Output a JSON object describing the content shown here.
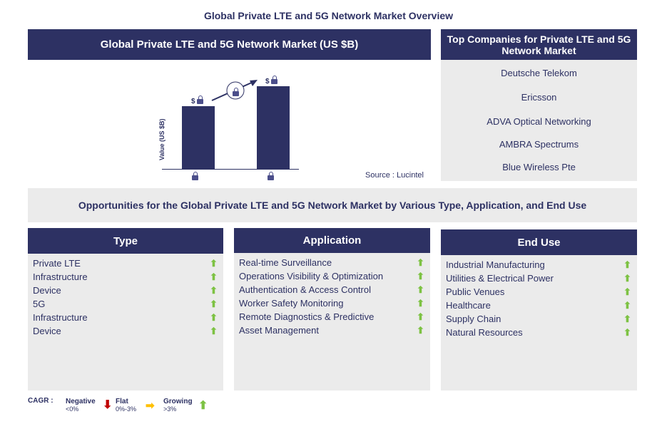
{
  "title": "Global Private LTE and 5G Network Market Overview",
  "chart": {
    "header": "Global Private LTE and 5G Network Market (US $B)",
    "ylabel": "Value (US $B)",
    "source": "Source : Lucintel",
    "bar_label": "$",
    "accent": "#2d3163"
  },
  "chart_data": {
    "type": "bar",
    "ylabel": "Value (US $B)",
    "categories": [
      "locked",
      "locked"
    ],
    "values": [
      "locked",
      "locked"
    ]
  },
  "companies": {
    "header": "Top Companies for Private LTE and 5G Network Market",
    "items": [
      "Deutsche Telekom",
      "Ericsson",
      "ADVA Optical Networking",
      "AMBRA Spectrums",
      "Blue Wireless Pte"
    ]
  },
  "opportunities": "Opportunities for the Global Private LTE and 5G Network Market by Various Type, Application, and End Use",
  "columns": [
    {
      "header": "Type",
      "items": [
        "Private LTE",
        "Infrastructure",
        "Device",
        "5G",
        "Infrastructure",
        "Device"
      ]
    },
    {
      "header": "Application",
      "items": [
        "Real-time Surveillance",
        "Operations Visibility & Optimization",
        "Authentication & Access Control",
        "Worker Safety Monitoring",
        "Remote Diagnostics & Predictive",
        "Asset Management"
      ]
    },
    {
      "header": "End Use",
      "items": [
        "Industrial Manufacturing",
        "Utilities & Electrical Power",
        "Public Venues",
        "Healthcare",
        "Supply Chain",
        "Natural Resources"
      ]
    }
  ],
  "legend": {
    "label": "CAGR :",
    "negative": "Negative",
    "negative_range": "<0%",
    "flat": "Flat",
    "flat_range": "0%-3%",
    "growing": "Growing",
    "growing_range": ">3%",
    "colors": {
      "negative": "#c00000",
      "flat": "#ffc000",
      "growing": "#7dc243"
    }
  }
}
